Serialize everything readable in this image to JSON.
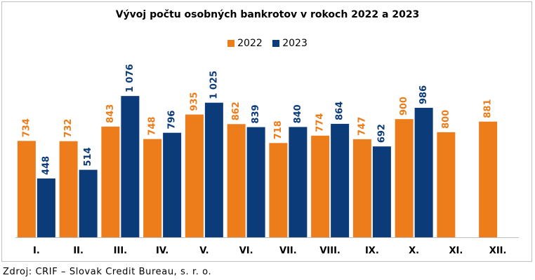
{
  "chart_data": {
    "type": "bar",
    "title": "Vývoj počtu osobných bankrotov v rokoch 2022 a 2023",
    "categories": [
      "I.",
      "II.",
      "III.",
      "IV.",
      "V.",
      "VI.",
      "VII.",
      "VIII.",
      "IX.",
      "X.",
      "XI.",
      "XII."
    ],
    "series": [
      {
        "name": "2022",
        "color": "#ed7d1b",
        "values": [
          734,
          732,
          843,
          748,
          935,
          862,
          718,
          774,
          747,
          900,
          800,
          881
        ],
        "labels": [
          "734",
          "732",
          "843",
          "748",
          "935",
          "862",
          "718",
          "774",
          "747",
          "900",
          "800",
          "881"
        ]
      },
      {
        "name": "2023",
        "color": "#0c3b7a",
        "values": [
          448,
          514,
          1076,
          796,
          1025,
          839,
          840,
          864,
          692,
          986,
          null,
          null
        ],
        "labels": [
          "448",
          "514",
          "1 076",
          "796",
          "1 025",
          "839",
          "840",
          "864",
          "692",
          "986",
          "",
          ""
        ]
      }
    ],
    "xlabel": "",
    "ylabel": "",
    "ylim": [
      0,
      1250
    ],
    "grid": false,
    "legend_position": "top-center"
  },
  "source_text": "Zdroj: CRIF – Slovak Credit Bureau, s. r. o."
}
